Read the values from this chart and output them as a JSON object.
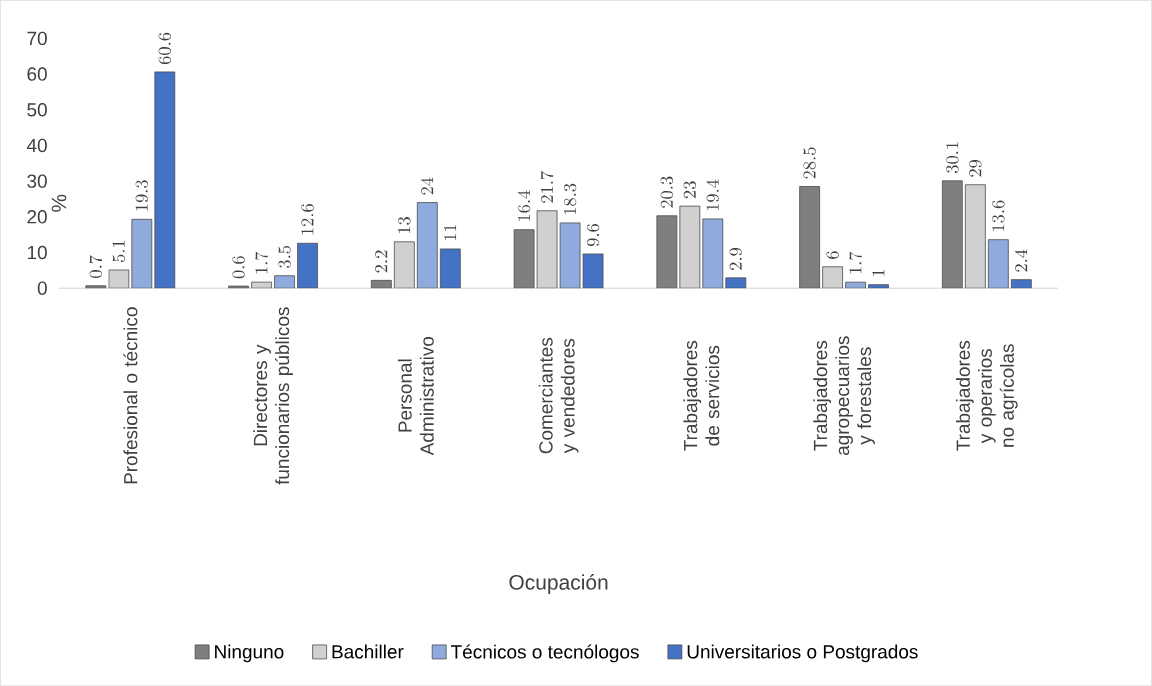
{
  "chart_data": {
    "type": "bar",
    "categories": [
      "Profesional o técnico",
      "Directores y funcionarios públicos",
      "Personal Administrativo",
      "Comerciantes y vendedores",
      "Trabajadores de servicios",
      "Trabajadores agropecuarios y forestales",
      "Trabajadores y operarios no agrícolas"
    ],
    "series": [
      {
        "name": "Ninguno",
        "color": "#7f7f7f",
        "values": [
          0.7,
          0.6,
          2.2,
          16.4,
          20.3,
          28.5,
          30.1
        ]
      },
      {
        "name": "Bachiller",
        "color": "#d0d0d0",
        "values": [
          5.1,
          1.7,
          13,
          21.7,
          23,
          6,
          29
        ]
      },
      {
        "name": "Técnicos o tecnólogos",
        "color": "#8faadc",
        "values": [
          19.3,
          3.5,
          24,
          18.3,
          19.4,
          1.7,
          13.6
        ]
      },
      {
        "name": "Universitarios o Postgrados",
        "color": "#4472c4",
        "values": [
          60.6,
          12.6,
          11,
          9.6,
          2.9,
          1,
          2.4
        ]
      }
    ],
    "xlabel": "Ocupación",
    "ylabel": "%",
    "ylim": [
      0,
      70
    ],
    "yticks": [
      0,
      10,
      20,
      30,
      40,
      50,
      60,
      70
    ],
    "data_labels": true,
    "legend": "bottom",
    "grid": false
  }
}
